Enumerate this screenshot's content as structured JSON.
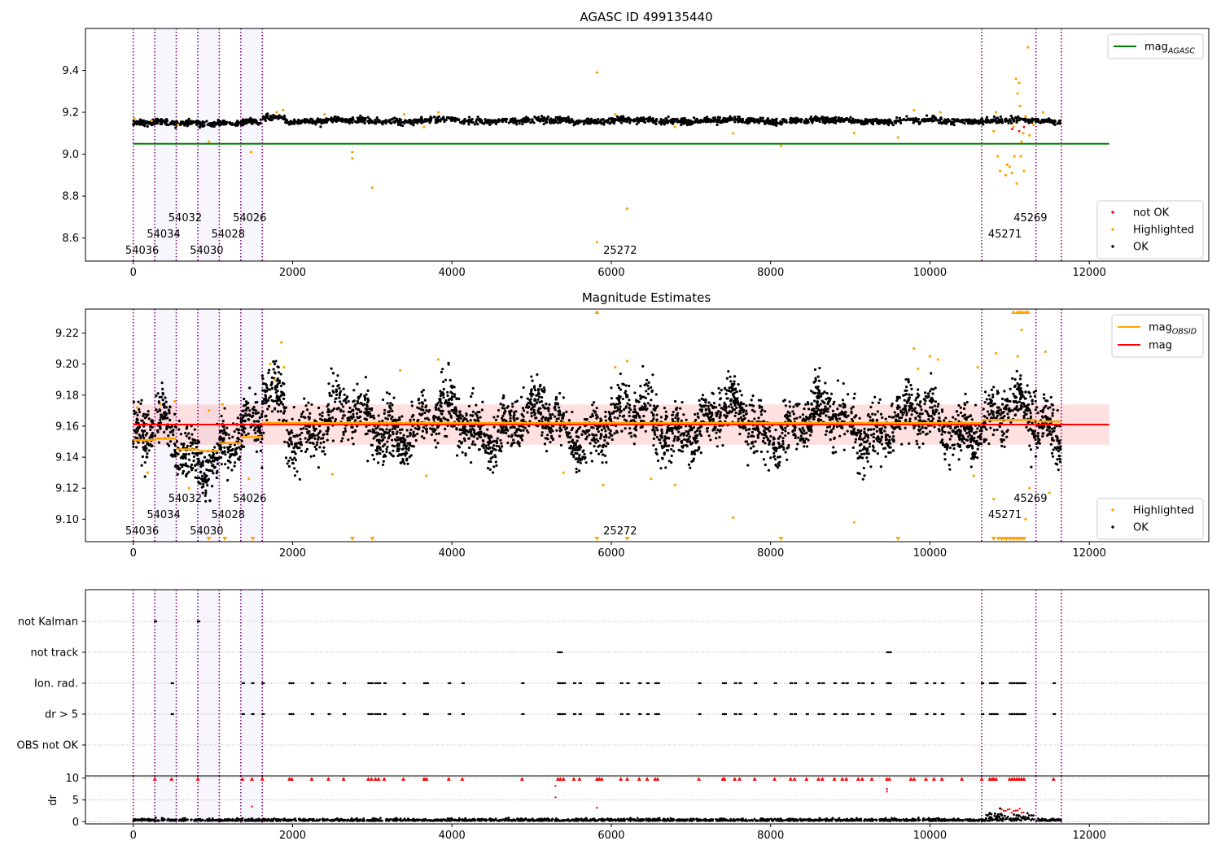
{
  "chart_data": [
    {
      "id": "agasc",
      "type": "scatter",
      "title": "AGASC ID 499135440",
      "xlim": [
        -600,
        13500
      ],
      "ylim": [
        8.49,
        9.6
      ],
      "xticks": [
        0,
        2000,
        4000,
        6000,
        8000,
        10000,
        12000
      ],
      "yticks": [
        8.6,
        8.8,
        9.0,
        9.2,
        9.4
      ],
      "ytick_labels": [
        "8.6",
        "8.8",
        "9.0",
        "9.2",
        "9.4"
      ],
      "xlabel": "",
      "ylabel": "",
      "legend_upper": {
        "position": "top-right",
        "entries": [
          {
            "label": "mag",
            "sub": "AGASC",
            "color": "#008000",
            "kind": "line"
          }
        ]
      },
      "legend_lower": {
        "position": "bottom-right",
        "entries": [
          {
            "label": "not OK",
            "color": "#ff0000",
            "kind": "point"
          },
          {
            "label": "Highlighted",
            "color": "#ffa500",
            "kind": "point"
          },
          {
            "label": "OK",
            "color": "#000000",
            "kind": "point"
          }
        ]
      },
      "mag_agasc": {
        "value": 9.05,
        "x_range": [
          0,
          12250
        ],
        "color": "#008000"
      },
      "ok_band": {
        "center": [
          [
            0,
            9.16
          ],
          [
            1600,
            9.15
          ],
          [
            1650,
            9.16
          ],
          [
            12000,
            9.16
          ]
        ],
        "x_end": 11650,
        "spread": 0.035,
        "count": 2100
      },
      "highlighted_points": [
        [
          15,
          9.17
        ],
        [
          230,
          9.16
        ],
        [
          560,
          9.14
        ],
        [
          950,
          9.06
        ],
        [
          1480,
          9.01
        ],
        [
          1800,
          9.2
        ],
        [
          1880,
          9.21
        ],
        [
          2400,
          9.19
        ],
        [
          2750,
          9.01
        ],
        [
          2750,
          8.98
        ],
        [
          3000,
          8.84
        ],
        [
          3400,
          9.19
        ],
        [
          3650,
          9.13
        ],
        [
          3830,
          9.2
        ],
        [
          5820,
          9.39
        ],
        [
          5820,
          8.58
        ],
        [
          6200,
          8.74
        ],
        [
          6050,
          9.19
        ],
        [
          6800,
          9.13
        ],
        [
          7530,
          9.1
        ],
        [
          8130,
          9.04
        ],
        [
          9050,
          9.1
        ],
        [
          9600,
          9.08
        ],
        [
          9800,
          9.21
        ],
        [
          10130,
          9.2
        ],
        [
          10800,
          9.11
        ],
        [
          10830,
          9.2
        ],
        [
          10850,
          8.99
        ],
        [
          10880,
          8.92
        ],
        [
          10950,
          8.9
        ],
        [
          10970,
          8.95
        ],
        [
          11000,
          8.94
        ],
        [
          11030,
          8.91
        ],
        [
          11050,
          9.13
        ],
        [
          11060,
          8.99
        ],
        [
          11080,
          9.36
        ],
        [
          11090,
          8.86
        ],
        [
          11100,
          9.29
        ],
        [
          11120,
          9.34
        ],
        [
          11130,
          9.23
        ],
        [
          11140,
          8.99
        ],
        [
          11150,
          9.06
        ],
        [
          11170,
          9.1
        ],
        [
          11180,
          8.92
        ],
        [
          11200,
          9.18
        ],
        [
          11230,
          9.51
        ],
        [
          11250,
          9.09
        ],
        [
          11300,
          9.14
        ],
        [
          11420,
          9.2
        ]
      ],
      "obsid_lines": [
        0,
        270,
        540,
        810,
        1080,
        1350,
        1620,
        10650,
        11330,
        11650
      ],
      "obsid_labels": [
        {
          "text": "54036",
          "x": -100,
          "row": 0
        },
        {
          "text": "54034",
          "x": 170,
          "row": 1
        },
        {
          "text": "54032",
          "x": 440,
          "row": 2
        },
        {
          "text": "54030",
          "x": 710,
          "row": 0
        },
        {
          "text": "54028",
          "x": 980,
          "row": 1
        },
        {
          "text": "54026",
          "x": 1250,
          "row": 2
        },
        {
          "text": "25272",
          "x": 5900,
          "row": 0
        },
        {
          "text": "45271",
          "x": 10730,
          "row": 1
        },
        {
          "text": "45269",
          "x": 11050,
          "row": 2
        }
      ]
    },
    {
      "id": "estimates",
      "type": "scatter",
      "title": "Magnitude Estimates",
      "xlim": [
        -600,
        13500
      ],
      "ylim": [
        9.0855,
        9.2355
      ],
      "xticks": [
        0,
        2000,
        4000,
        6000,
        8000,
        10000,
        12000
      ],
      "yticks": [
        9.1,
        9.12,
        9.14,
        9.16,
        9.18,
        9.2,
        9.22
      ],
      "ytick_labels": [
        "9.10",
        "9.12",
        "9.14",
        "9.16",
        "9.18",
        "9.20",
        "9.22"
      ],
      "xlabel": "",
      "ylabel": "",
      "legend_upper": {
        "position": "top-right",
        "entries": [
          {
            "label": "mag",
            "sub": "OBSID",
            "color": "#ffa500",
            "kind": "line"
          },
          {
            "label": "mag",
            "sub": "",
            "color": "#ff0000",
            "kind": "line"
          }
        ]
      },
      "legend_lower": {
        "position": "bottom-right",
        "entries": [
          {
            "label": "Highlighted",
            "color": "#ffa500",
            "kind": "point"
          },
          {
            "label": "OK",
            "color": "#000000",
            "kind": "point"
          }
        ]
      },
      "mag": {
        "value": 9.161,
        "x_range": [
          0,
          12250
        ],
        "color": "#ff0000",
        "band": [
          9.148,
          9.174
        ]
      },
      "mag_obsid": [
        {
          "x0": 0,
          "x1": 270,
          "y": 9.151
        },
        {
          "x0": 270,
          "x1": 540,
          "y": 9.152
        },
        {
          "x0": 540,
          "x1": 810,
          "y": 9.145
        },
        {
          "x0": 810,
          "x1": 1080,
          "y": 9.144
        },
        {
          "x0": 1080,
          "x1": 1350,
          "y": 9.149
        },
        {
          "x0": 1350,
          "x1": 1620,
          "y": 9.153
        },
        {
          "x0": 1620,
          "x1": 10650,
          "y": 9.162
        },
        {
          "x0": 10650,
          "x1": 11330,
          "y": 9.164
        },
        {
          "x0": 11330,
          "x1": 11650,
          "y": 9.163
        }
      ],
      "ok_band": {
        "count": 4200,
        "spread": 0.02
      },
      "highlighted_points": [
        [
          50,
          9.172
        ],
        [
          180,
          9.13
        ],
        [
          340,
          9.174
        ],
        [
          520,
          9.176
        ],
        [
          700,
          9.12
        ],
        [
          950,
          9.17
        ],
        [
          1120,
          9.174
        ],
        [
          1450,
          9.126
        ],
        [
          1720,
          9.2
        ],
        [
          1780,
          9.19
        ],
        [
          1860,
          9.214
        ],
        [
          1890,
          9.198
        ],
        [
          2500,
          9.129
        ],
        [
          3350,
          9.196
        ],
        [
          3680,
          9.128
        ],
        [
          3830,
          9.203
        ],
        [
          5400,
          9.13
        ],
        [
          5900,
          9.122
        ],
        [
          6050,
          9.198
        ],
        [
          6200,
          9.202
        ],
        [
          6500,
          9.126
        ],
        [
          6800,
          9.122
        ],
        [
          7530,
          9.101
        ],
        [
          9050,
          9.098
        ],
        [
          9800,
          9.21
        ],
        [
          9850,
          9.197
        ],
        [
          10000,
          9.205
        ],
        [
          10100,
          9.203
        ],
        [
          10550,
          9.128
        ],
        [
          10600,
          9.198
        ],
        [
          10800,
          9.113
        ],
        [
          10830,
          9.207
        ],
        [
          11100,
          9.205
        ],
        [
          11150,
          9.222
        ],
        [
          11200,
          9.1
        ],
        [
          11250,
          9.12
        ],
        [
          11450,
          9.208
        ],
        [
          11500,
          9.117
        ]
      ],
      "clipped_top": [
        5820,
        11050,
        11100,
        11130,
        11160,
        11200,
        11230
      ],
      "clipped_bottom": [
        950,
        1150,
        1500,
        2750,
        3000,
        5820,
        6200,
        8130,
        9600,
        10800,
        10860,
        10900,
        10930,
        10960,
        11000,
        11030,
        11060,
        11090,
        11120,
        11150,
        11180
      ],
      "obsid_lines": [
        0,
        270,
        540,
        810,
        1080,
        1350,
        1620,
        10650,
        11330,
        11650
      ],
      "obsid_labels": [
        {
          "text": "54036",
          "x": -100,
          "row": 0
        },
        {
          "text": "54034",
          "x": 170,
          "row": 1
        },
        {
          "text": "54032",
          "x": 440,
          "row": 2
        },
        {
          "text": "54030",
          "x": 710,
          "row": 0
        },
        {
          "text": "54028",
          "x": 980,
          "row": 1
        },
        {
          "text": "54026",
          "x": 1250,
          "row": 2
        },
        {
          "text": "25272",
          "x": 5900,
          "row": 0
        },
        {
          "text": "45271",
          "x": 10730,
          "row": 1
        },
        {
          "text": "45269",
          "x": 11050,
          "row": 2
        }
      ]
    },
    {
      "id": "flags",
      "type": "scatter",
      "title": "",
      "xlim": [
        -600,
        13500
      ],
      "xticks": [
        0,
        2000,
        4000,
        6000,
        8000,
        10000,
        12000
      ],
      "xlabel": "",
      "ylabel": "",
      "categories": [
        "not Kalman",
        "not track",
        "Ion. rad.",
        "dr > 5",
        "OBS not OK"
      ],
      "flag_points": {
        "not Kalman": [
          270,
          810
        ],
        "not track": [
          5330,
          5360,
          9460,
          9490
        ],
        "Ion. rad.": [
          480,
          1370,
          1490,
          1620,
          1960,
          1990,
          2240,
          2450,
          2640,
          2950,
          2990,
          3040,
          3080,
          3150,
          3390,
          3650,
          3680,
          3960,
          4130,
          4880,
          5330,
          5360,
          5400,
          5530,
          5600,
          5820,
          5850,
          5880,
          6120,
          6200,
          6350,
          6450,
          6550,
          6580,
          7100,
          7400,
          7420,
          7550,
          7610,
          7800,
          8050,
          8250,
          8300,
          8450,
          8600,
          8650,
          8800,
          8900,
          8950,
          9100,
          9150,
          9270,
          9460,
          9490,
          9760,
          9800,
          9950,
          10050,
          10150,
          10400,
          10650,
          10750,
          10780,
          10800,
          10830,
          11000,
          11030,
          11060,
          11090,
          11120,
          11150,
          11180,
          11550
        ],
        "dr > 5": [
          480,
          1370,
          1490,
          1620,
          1960,
          1990,
          2240,
          2450,
          2640,
          2950,
          2990,
          3040,
          3080,
          3150,
          3390,
          3650,
          3680,
          3960,
          4130,
          4880,
          5330,
          5360,
          5400,
          5530,
          5600,
          5820,
          5850,
          5880,
          6120,
          6200,
          6350,
          6450,
          6550,
          6580,
          7100,
          7400,
          7420,
          7550,
          7610,
          7800,
          8050,
          8250,
          8300,
          8450,
          8600,
          8650,
          8800,
          8900,
          8950,
          9100,
          9150,
          9270,
          9460,
          9490,
          9760,
          9800,
          9950,
          10050,
          10150,
          10400,
          10650,
          10750,
          10780,
          10800,
          10830,
          11000,
          11030,
          11060,
          11090,
          11120,
          11150,
          11180,
          11550
        ],
        "OBS not OK": []
      },
      "obsid_lines": [
        0,
        270,
        540,
        810,
        1080,
        1350,
        1620,
        10650,
        11330,
        11650
      ]
    },
    {
      "id": "dr",
      "type": "scatter",
      "title": "",
      "xlim": [
        -600,
        13500
      ],
      "ylim": [
        -0.5,
        10.5
      ],
      "xticks": [
        0,
        2000,
        4000,
        6000,
        8000,
        10000,
        12000
      ],
      "xtick_labels": [
        "0",
        "2000",
        "4000",
        "6000",
        "8000",
        "10000",
        "12000"
      ],
      "yticks": [
        0,
        5,
        10
      ],
      "ytick_labels": [
        "0",
        "5",
        "10"
      ],
      "xlabel": "",
      "ylabel": "dr",
      "clipped_x": [
        270,
        480,
        810,
        1370,
        1490,
        1620,
        1960,
        1990,
        2240,
        2450,
        2640,
        2950,
        2990,
        3040,
        3080,
        3150,
        3390,
        3650,
        3680,
        3960,
        4130,
        4880,
        5330,
        5360,
        5400,
        5530,
        5600,
        5820,
        5850,
        5880,
        6120,
        6200,
        6350,
        6450,
        6550,
        6580,
        7100,
        7400,
        7420,
        7550,
        7610,
        7800,
        8050,
        8250,
        8300,
        8450,
        8600,
        8650,
        8800,
        8900,
        8950,
        9100,
        9150,
        9270,
        9460,
        9490,
        9760,
        9800,
        9950,
        10050,
        10150,
        10400,
        10650,
        10750,
        10780,
        10800,
        10830,
        11000,
        11030,
        11060,
        11090,
        11120,
        11150,
        11180,
        11550
      ],
      "extra_red_points": [
        [
          5300,
          8.2
        ],
        [
          5300,
          5.6
        ],
        [
          5820,
          3.2
        ],
        [
          9460,
          7.5
        ],
        [
          9460,
          6.9
        ],
        [
          1490,
          3.5
        ]
      ],
      "ok_count": 1800,
      "obsid_lines": [
        0,
        270,
        540,
        810,
        1080,
        1350,
        1620,
        10650,
        11330,
        11650
      ]
    }
  ]
}
